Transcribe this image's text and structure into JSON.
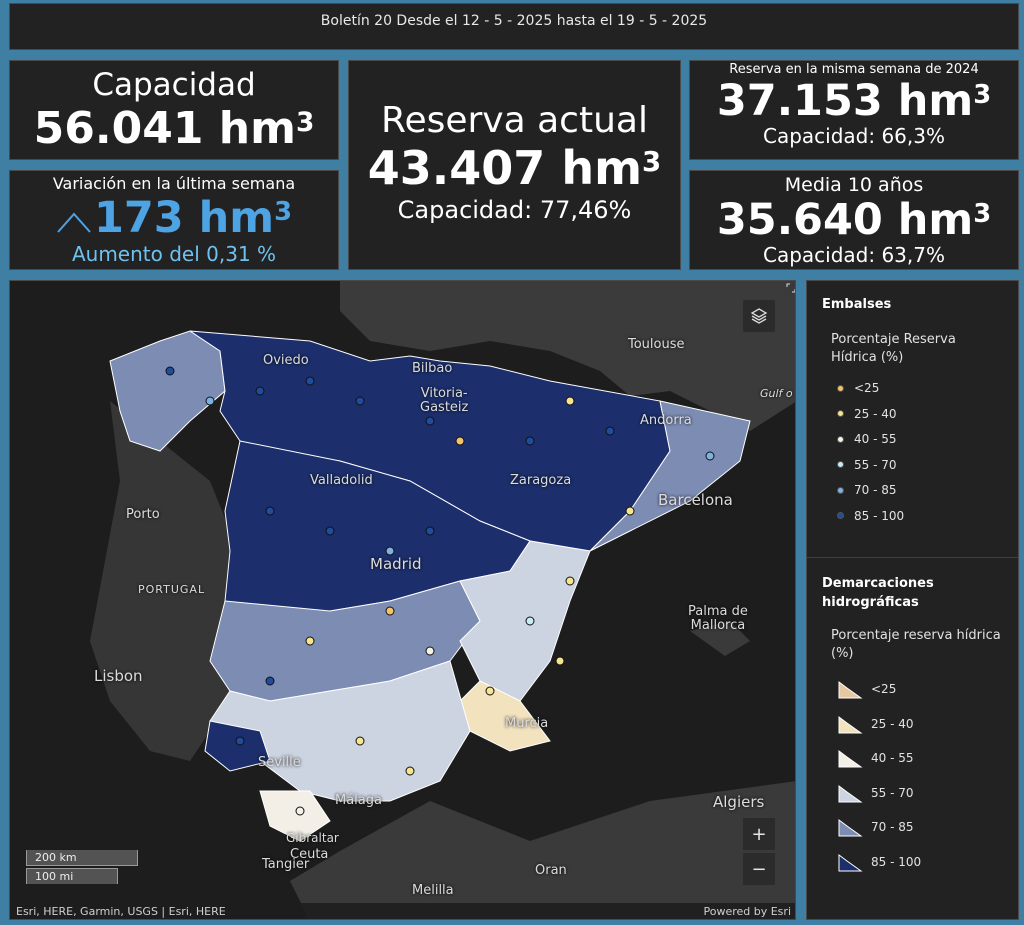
{
  "header": {
    "title": "Boletín 20 Desde el 12 - 5 - 2025 hasta el 19 - 5 - 2025"
  },
  "capacity": {
    "label": "Capacidad",
    "value": "56.041 hm",
    "sup": "3"
  },
  "variation": {
    "label": "Variación en la última semana",
    "value": "173 hm",
    "sup": "3",
    "sub": "Aumento del 0,31 %",
    "color": "#4da3e3"
  },
  "current": {
    "label": "Reserva actual",
    "value": "43.407 hm",
    "sup": "3",
    "sub": "Capacidad: 77,46%"
  },
  "last_year": {
    "label": "Reserva en la misma semana de 2024",
    "value": "37.153 hm",
    "sup": "3",
    "sub": "Capacidad: 66,3%"
  },
  "avg10": {
    "label": "Media 10 años",
    "value": "35.640 hm",
    "sup": "3",
    "sub": "Capacidad: 63,7%"
  },
  "map": {
    "labels": {
      "oviedo": "Oviedo",
      "bilbao": "Bilbao",
      "vitoria": "Vitoria-\nGasteiz",
      "toulouse": "Toulouse",
      "gulf": "Gulf o",
      "andorra": "Andorra",
      "valladolid": "Valladolid",
      "zaragoza": "Zaragoza",
      "barcelona": "Barcelona",
      "porto": "Porto",
      "portugal": "PORTUGAL",
      "madrid": "Madrid",
      "palma": "Palma de\nMallorca",
      "lisbon": "Lisbon",
      "murcia": "Murcia",
      "seville": "Seville",
      "malaga": "Málaga",
      "algiers": "Algiers",
      "gibraltar": "Gibraltar",
      "ceuta": "Ceuta",
      "tangier": "Tangier",
      "oran": "Oran",
      "melilla": "Melilla"
    },
    "scale_km": "200 km",
    "scale_mi": "100 mi",
    "attribution": "Esri, HERE, Garmin, USGS | Esri, HERE",
    "powered": "Powered by Esri",
    "zoom_in": "+",
    "zoom_out": "−",
    "layers_icon": "layers-icon",
    "expand_icon": "expand-icon"
  },
  "legend": {
    "embalses_title": "Embalses",
    "embalses_sub": "Porcentaje Reserva Hídrica (%)",
    "embalses": [
      {
        "label": "<25",
        "color": "#f3c36b"
      },
      {
        "label": "25 - 40",
        "color": "#f6e58f"
      },
      {
        "label": "40 - 55",
        "color": "#f4f1e6"
      },
      {
        "label": "55 - 70",
        "color": "#c9ecf4"
      },
      {
        "label": "70 - 85",
        "color": "#7fb1e0"
      },
      {
        "label": "85 - 100",
        "color": "#1f4c9c"
      }
    ],
    "dem_title": "Demarcaciones hidrográficas",
    "dem_sub": "Porcentaje reserva hídrica (%)",
    "demarcaciones": [
      {
        "label": "<25",
        "color": "#e6c7a2"
      },
      {
        "label": "25 - 40",
        "color": "#f2e2bd"
      },
      {
        "label": "40 - 55",
        "color": "#f3efe7"
      },
      {
        "label": "55 - 70",
        "color": "#ccd3e1"
      },
      {
        "label": "70 - 85",
        "color": "#7d8cb3"
      },
      {
        "label": "85 - 100",
        "color": "#1c2f6c"
      }
    ]
  }
}
